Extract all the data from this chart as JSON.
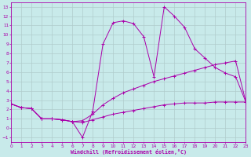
{
  "xlabel": "Windchill (Refroidissement éolien,°C)",
  "bg_color": "#c8eaea",
  "grid_color": "#b0cccc",
  "line_color": "#aa00aa",
  "xlim": [
    0,
    23
  ],
  "ylim": [
    -1.5,
    13.5
  ],
  "xticks": [
    0,
    1,
    2,
    3,
    4,
    5,
    6,
    7,
    8,
    9,
    10,
    11,
    12,
    13,
    14,
    15,
    16,
    17,
    18,
    19,
    20,
    21,
    22,
    23
  ],
  "yticks": [
    -1,
    0,
    1,
    2,
    3,
    4,
    5,
    6,
    7,
    8,
    9,
    10,
    11,
    12,
    13
  ],
  "line_spike_x": [
    0,
    1,
    2,
    3,
    4,
    5,
    6,
    7,
    8,
    9,
    10,
    11,
    12,
    13,
    14,
    15,
    16,
    17,
    18,
    19,
    20,
    21,
    22,
    23
  ],
  "line_spike_y": [
    2.6,
    2.2,
    2.1,
    1.0,
    1.0,
    0.9,
    0.7,
    -1.0,
    1.8,
    9.0,
    11.3,
    11.5,
    11.2,
    9.8,
    5.5,
    13.0,
    12.0,
    10.8,
    8.5,
    7.5,
    6.5,
    5.9,
    5.5,
    2.8
  ],
  "line_diag_x": [
    0,
    1,
    2,
    3,
    4,
    5,
    6,
    7,
    8,
    9,
    10,
    11,
    12,
    13,
    14,
    15,
    16,
    17,
    18,
    19,
    20,
    21,
    22,
    23
  ],
  "line_diag_y": [
    2.6,
    2.2,
    2.1,
    1.0,
    1.0,
    0.9,
    0.7,
    0.8,
    1.5,
    2.5,
    3.2,
    3.8,
    4.2,
    4.6,
    5.0,
    5.3,
    5.6,
    5.9,
    6.2,
    6.5,
    6.8,
    7.0,
    7.2,
    2.8
  ],
  "line_flat_x": [
    0,
    1,
    2,
    3,
    4,
    5,
    6,
    7,
    8,
    9,
    10,
    11,
    12,
    13,
    14,
    15,
    16,
    17,
    18,
    19,
    20,
    21,
    22,
    23
  ],
  "line_flat_y": [
    2.6,
    2.2,
    2.1,
    1.0,
    1.0,
    0.9,
    0.7,
    0.6,
    0.9,
    1.2,
    1.5,
    1.7,
    1.9,
    2.1,
    2.3,
    2.5,
    2.6,
    2.7,
    2.7,
    2.7,
    2.8,
    2.8,
    2.8,
    2.8
  ]
}
